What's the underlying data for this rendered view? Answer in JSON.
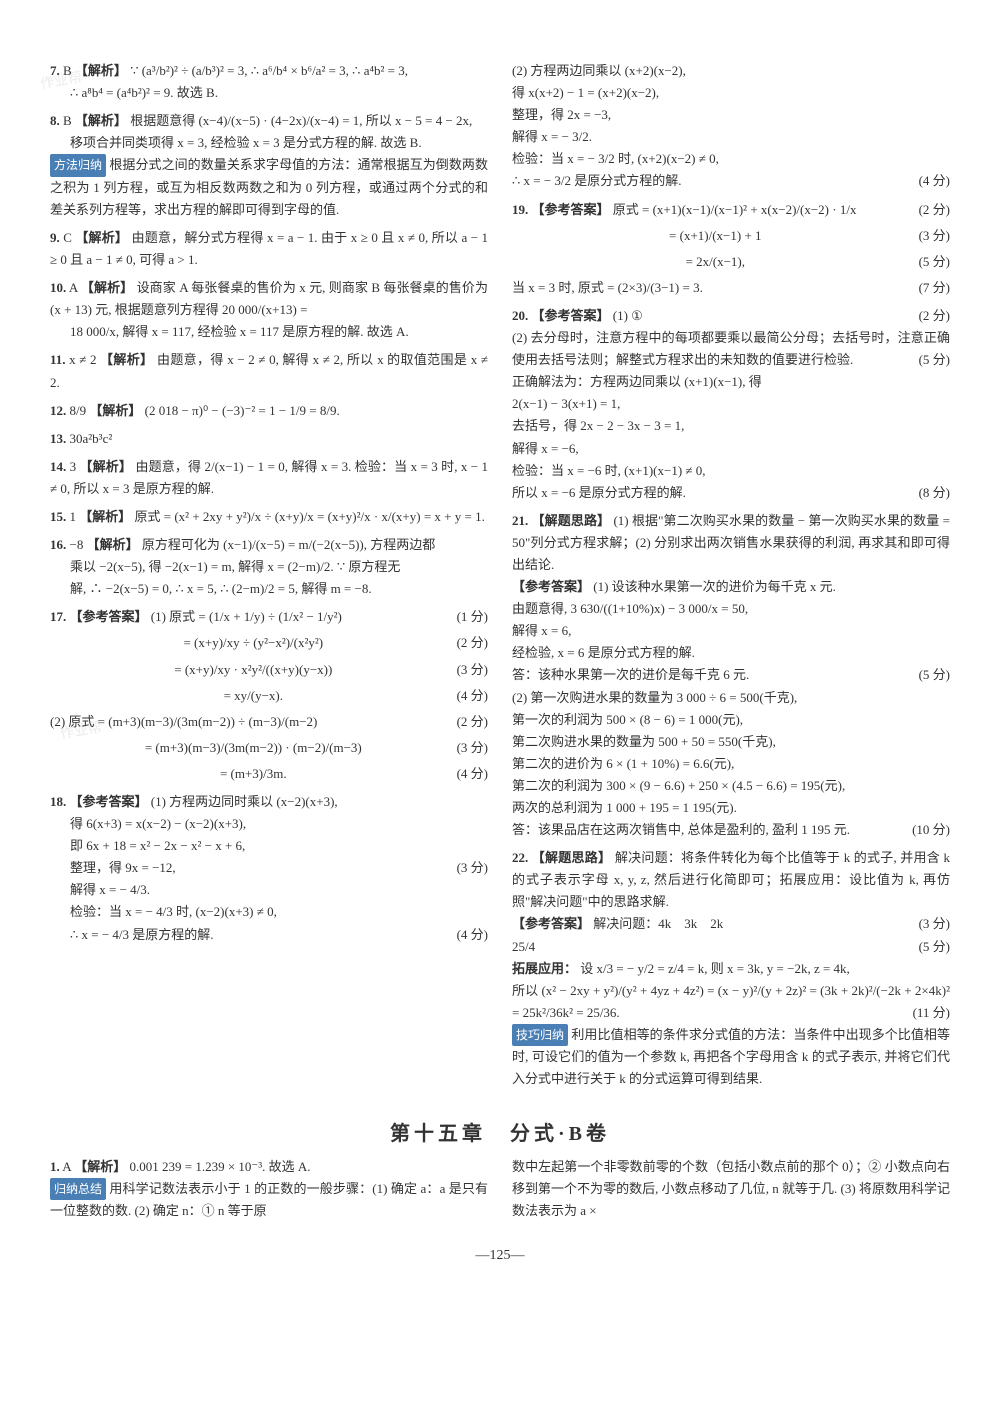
{
  "watermarks": {
    "wm1": "作业帮",
    "wm2": "作业帮"
  },
  "left_column": {
    "q7": {
      "num": "7.",
      "ans": "B",
      "tag": "【解析】",
      "text1": "∵ (a³/b²)² ÷ (a/b³)² = 3, ∴ a⁶/b⁴ × b⁶/a² = 3, ∴ a⁴b² = 3,",
      "text2": "∴ a⁸b⁴ = (a⁴b²)² = 9. 故选 B."
    },
    "q8": {
      "num": "8.",
      "ans": "B",
      "tag": "【解析】",
      "text1": "根据题意得 (x−4)/(x−5) · (4−2x)/(x−4) = 1, 所以 x − 5 = 4 − 2x,",
      "text2": "移项合并同类项得 x = 3, 经检验 x = 3 是分式方程的解. 故选 B.",
      "method_tag": "方法归纳",
      "method_text": "根据分式之间的数量关系求字母值的方法：通常根据互为倒数两数之积为 1 列方程，或互为相反数两数之和为 0 列方程，或通过两个分式的和差关系列方程等，求出方程的解即可得到字母的值."
    },
    "q9": {
      "num": "9.",
      "ans": "C",
      "tag": "【解析】",
      "text": "由题意，解分式方程得 x = a − 1. 由于 x ≥ 0 且 x ≠ 0, 所以 a − 1 ≥ 0 且 a − 1 ≠ 0, 可得 a > 1."
    },
    "q10": {
      "num": "10.",
      "ans": "A",
      "tag": "【解析】",
      "text1": "设商家 A 每张餐桌的售价为 x 元, 则商家 B 每张餐桌的售价为 (x + 13) 元, 根据题意列方程得 20 000/(x+13) =",
      "text2": "18 000/x, 解得 x = 117, 经检验 x = 117 是原方程的解. 故选 A."
    },
    "q11": {
      "num": "11.",
      "ans": "x ≠ 2",
      "tag": "【解析】",
      "text": "由题意，得 x − 2 ≠ 0, 解得 x ≠ 2, 所以 x 的取值范围是 x ≠ 2."
    },
    "q12": {
      "num": "12.",
      "ans": "8/9",
      "tag": "【解析】",
      "text": "(2 018 − π)⁰ − (−3)⁻² = 1 − 1/9 = 8/9."
    },
    "q13": {
      "num": "13.",
      "ans": "30a²b³c²"
    },
    "q14": {
      "num": "14.",
      "ans": "3",
      "tag": "【解析】",
      "text": "由题意，得 2/(x−1) − 1 = 0, 解得 x = 3. 检验：当 x = 3 时, x − 1 ≠ 0, 所以 x = 3 是原方程的解."
    },
    "q15": {
      "num": "15.",
      "ans": "1",
      "tag": "【解析】",
      "text": "原式 = (x² + 2xy + y²)/x ÷ (x+y)/x = (x+y)²/x · x/(x+y) = x + y = 1."
    },
    "q16": {
      "num": "16.",
      "ans": "−8",
      "tag": "【解析】",
      "text1": "原方程可化为 (x−1)/(x−5) = m/(−2(x−5)), 方程两边都",
      "text2": "乘以 −2(x−5), 得 −2(x−1) = m, 解得 x = (2−m)/2. ∵ 原方程无",
      "text3": "解, ∴ −2(x−5) = 0, ∴ x = 5, ∴ (2−m)/2 = 5, 解得 m = −8."
    },
    "q17": {
      "num": "17.",
      "tag": "【参考答案】",
      "line1": "(1) 原式 = (1/x + 1/y) ÷ (1/x² − 1/y²)",
      "score1": "(1 分)",
      "line2": "= (x+y)/xy ÷ (y²−x²)/(x²y²)",
      "score2": "(2 分)",
      "line3": "= (x+y)/xy · x²y²/((x+y)(y−x))",
      "score3": "(3 分)",
      "line4": "= xy/(y−x).",
      "score4": "(4 分)",
      "line5": "(2) 原式 = (m+3)(m−3)/(3m(m−2)) ÷ (m−3)/(m−2)",
      "score5": "(2 分)",
      "line6": "= (m+3)(m−3)/(3m(m−2)) · (m−2)/(m−3)",
      "score6": "(3 分)",
      "line7": "= (m+3)/3m.",
      "score7": "(4 分)"
    },
    "q18": {
      "num": "18.",
      "tag": "【参考答案】",
      "line1": "(1) 方程两边同时乘以 (x−2)(x+3),",
      "line2": "得 6(x+3) = x(x−2) − (x−2)(x+3),",
      "line3": "即 6x + 18 = x² − 2x − x² − x + 6,",
      "line4": "整理，得 9x = −12,",
      "score4": "(3 分)",
      "line5": "解得 x = − 4/3.",
      "line6": "检验：当 x = − 4/3 时, (x−2)(x+3) ≠ 0,",
      "line7": "∴ x = − 4/3 是原方程的解.",
      "score7": "(4 分)"
    }
  },
  "right_column": {
    "q18_cont": {
      "line1": "(2) 方程两边同乘以 (x+2)(x−2),",
      "line2": "得 x(x+2) − 1 = (x+2)(x−2),",
      "line3": "整理，得 2x = −3,",
      "line4": "解得 x = − 3/2.",
      "line5": "检验：当 x = − 3/2 时, (x+2)(x−2) ≠ 0,",
      "line6": "∴ x = − 3/2 是原分式方程的解.",
      "score6": "(4 分)"
    },
    "q19": {
      "num": "19.",
      "tag": "【参考答案】",
      "line1": "原式 = (x+1)(x−1)/(x−1)² + x(x−2)/(x−2) · 1/x",
      "score1": "(2 分)",
      "line2": "= (x+1)/(x−1) + 1",
      "score2": "(3 分)",
      "line3": "= 2x/(x−1),",
      "score3": "(5 分)",
      "line4": "当 x = 3 时, 原式 = (2×3)/(3−1) = 3.",
      "score4": "(7 分)"
    },
    "q20": {
      "num": "20.",
      "tag": "【参考答案】",
      "line1": "(1) ①",
      "score1": "(2 分)",
      "line2": "(2) 去分母时，注意方程中的每项都要乘以最简公分母；去括号时，注意正确使用去括号法则；解整式方程求出的未知数的值要进行检验.",
      "score2": "(5 分)",
      "line3": "正确解法为：方程两边同乘以 (x+1)(x−1), 得",
      "line4": "2(x−1) − 3(x+1) = 1,",
      "line5": "去括号，得 2x − 2 − 3x − 3 = 1,",
      "line6": "解得 x = −6,",
      "line7": "检验：当 x = −6 时, (x+1)(x−1) ≠ 0,",
      "line8": "所以 x = −6 是原分式方程的解.",
      "score8": "(8 分)"
    },
    "q21": {
      "num": "21.",
      "tag_think": "【解题思路】",
      "think_text": "(1) 根据\"第二次购买水果的数量 − 第一次购买水果的数量 = 50\"列分式方程求解；(2) 分别求出两次销售水果获得的利润, 再求其和即可得出结论.",
      "tag_ans": "【参考答案】",
      "line1": "(1) 设该种水果第一次的进价为每千克 x 元.",
      "line2": "由题意得, 3 630/((1+10%)x) − 3 000/x = 50,",
      "line3": "解得 x = 6,",
      "line4": "经检验, x = 6 是原分式方程的解.",
      "line5": "答：该种水果第一次的进价是每千克 6 元.",
      "score5": "(5 分)",
      "line6": "(2) 第一次购进水果的数量为 3 000 ÷ 6 = 500(千克),",
      "line7": "第一次的利润为 500 × (8 − 6) = 1 000(元),",
      "line8": "第二次购进水果的数量为 500 + 50 = 550(千克),",
      "line9": "第二次的进价为 6 × (1 + 10%) = 6.6(元),",
      "line10": "第二次的利润为 300 × (9 − 6.6) + 250 × (4.5 − 6.6) = 195(元),",
      "line11": "两次的总利润为 1 000 + 195 = 1 195(元).",
      "line12": "答：该果品店在这两次销售中, 总体是盈利的, 盈利 1 195 元.",
      "score12": "(10 分)"
    },
    "q22": {
      "num": "22.",
      "tag_think": "【解题思路】",
      "think_text": "解决问题：将条件转化为每个比值等于 k 的式子, 并用含 k 的式子表示字母 x, y, z, 然后进行化简即可；拓展应用：设比值为 k, 再仿照\"解决问题\"中的思路求解.",
      "tag_ans": "【参考答案】",
      "line1": "解决问题：4k　3k　2k",
      "score1": "(3 分)",
      "line2": "25/4",
      "score2": "(5 分)",
      "ext_title": "拓展应用：",
      "ext1": "设 x/3 = − y/2 = z/4 = k, 则 x = 3k, y = −2k, z = 4k,",
      "ext2": "所以 (x² − 2xy + y²)/(y² + 4yz + 4z²) = (x − y)²/(y + 2z)² = (3k + 2k)²/(−2k + 2×4k)² = 25k²/36k² = 25/36.",
      "score_ext": "(11 分)",
      "tech_tag": "技巧归纳",
      "tech_text": "利用比值相等的条件求分式值的方法：当条件中出现多个比值相等时, 可设它们的值为一个参数 k, 再把各个字母用含 k 的式子表示, 并将它们代入分式中进行关于 k 的分式运算可得到结果."
    }
  },
  "section_b": {
    "title": "第十五章　分式·B卷",
    "q1": {
      "num": "1.",
      "ans": "A",
      "tag": "【解析】",
      "text": "0.001 239 = 1.239 × 10⁻³. 故选 A.",
      "sum_tag": "归纳总结",
      "sum_text": "用科学记数法表示小于 1 的正数的一般步骤：(1) 确定 a：a 是只有一位整数的数. (2) 确定 n：① n 等于原",
      "right_text1": "数中左起第一个非零数前零的个数（包括小数点前的那个 0）；② 小数点向右移到第一个不为零的数后, 小数点移动了几位, n 就等于几. (3) 将原数用科学记数法表示为 a ×"
    }
  },
  "page_number": "—125—"
}
